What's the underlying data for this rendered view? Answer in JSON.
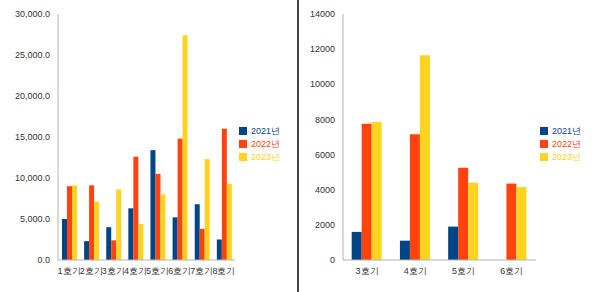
{
  "chart_data": [
    {
      "type": "bar",
      "categories": [
        "1호기",
        "2호기",
        "3호기",
        "4호기",
        "5호기",
        "6호기",
        "7호기",
        "8호기"
      ],
      "series": [
        {
          "name": "2021년",
          "color": "#004586",
          "values": [
            5000,
            2300,
            4000,
            6300,
            13400,
            5200,
            6800,
            2500
          ]
        },
        {
          "name": "2022년",
          "color": "#ff420e",
          "values": [
            9000,
            9100,
            2400,
            12600,
            10500,
            14800,
            3800,
            16000
          ]
        },
        {
          "name": "2023년",
          "color": "#ffd320",
          "values": [
            9100,
            7100,
            8600,
            4400,
            8000,
            27400,
            12300,
            9300
          ]
        }
      ],
      "ylim": [
        0,
        30000
      ],
      "yticks": [
        {
          "value": 0,
          "label": "0.0"
        },
        {
          "value": 5000,
          "label": "5,000.0"
        },
        {
          "value": 10000,
          "label": "10,000.0"
        },
        {
          "value": 15000,
          "label": "15,000.0"
        },
        {
          "value": 20000,
          "label": "20,000.0"
        },
        {
          "value": 25000,
          "label": "25,000.0"
        },
        {
          "value": 30000,
          "label": "30,000.0"
        }
      ],
      "grid": false,
      "legend": "right"
    },
    {
      "type": "bar",
      "categories": [
        "3호기",
        "4호기",
        "5호기",
        "6호기"
      ],
      "series": [
        {
          "name": "2021년",
          "color": "#004586",
          "values": [
            1600,
            1100,
            1900,
            null
          ]
        },
        {
          "name": "2022년",
          "color": "#ff420e",
          "values": [
            7750,
            7150,
            5250,
            4350
          ]
        },
        {
          "name": "2023년",
          "color": "#ffd320",
          "values": [
            7850,
            11650,
            4400,
            4150
          ]
        }
      ],
      "ylim": [
        0,
        14000
      ],
      "yticks": [
        0,
        2000,
        4000,
        6000,
        8000,
        10000,
        12000,
        14000
      ],
      "grid": false,
      "legend": "right"
    }
  ]
}
